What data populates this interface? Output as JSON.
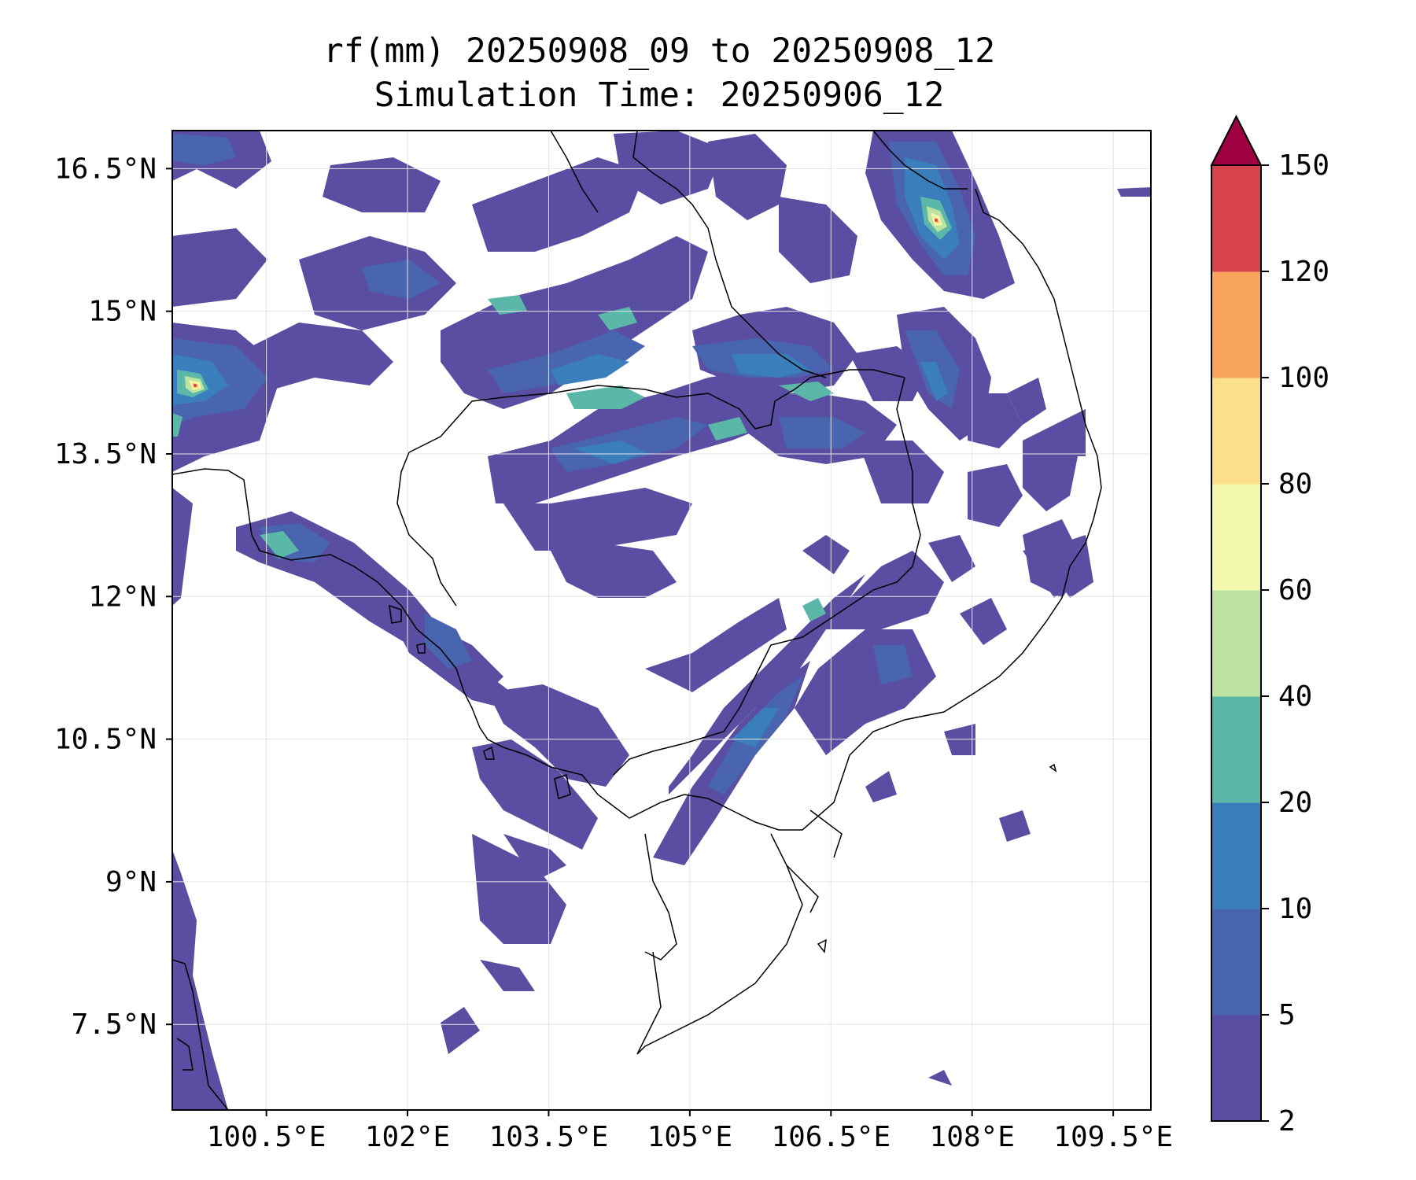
{
  "title": {
    "line1": "rf(mm) 20250908_09 to 20250908_12",
    "line2": "Simulation Time: 20250906_12"
  },
  "map": {
    "lon_range": [
      99.5,
      109.9
    ],
    "lat_range": [
      6.6,
      16.9
    ],
    "x_ticks": [
      {
        "value": 100.5,
        "label": "100.5°E"
      },
      {
        "value": 102,
        "label": "102°E"
      },
      {
        "value": 103.5,
        "label": "103.5°E"
      },
      {
        "value": 105,
        "label": "105°E"
      },
      {
        "value": 106.5,
        "label": "106.5°E"
      },
      {
        "value": 108,
        "label": "108°E"
      },
      {
        "value": 109.5,
        "label": "109.5°E"
      }
    ],
    "y_ticks": [
      {
        "value": 16.5,
        "label": "16.5°N"
      },
      {
        "value": 15,
        "label": "15°N"
      },
      {
        "value": 13.5,
        "label": "13.5°N"
      },
      {
        "value": 12,
        "label": "12°N"
      },
      {
        "value": 10.5,
        "label": "10.5°N"
      },
      {
        "value": 9,
        "label": "9°N"
      },
      {
        "value": 7.5,
        "label": "7.5°N"
      }
    ],
    "gridlines": true
  },
  "colorbar": {
    "levels": [
      2,
      5,
      10,
      20,
      40,
      60,
      80,
      100,
      120,
      150
    ],
    "labels": [
      "2",
      "5",
      "10",
      "20",
      "40",
      "60",
      "80",
      "100",
      "120",
      "150"
    ],
    "colors": [
      "#5a4ea2",
      "#4a65b0",
      "#3a7fbc",
      "#5bb8a8",
      "#bde3a1",
      "#f2f8ad",
      "#fbdf8a",
      "#f9a45e",
      "#d8424d"
    ],
    "extend_color": "#9e0142"
  }
}
